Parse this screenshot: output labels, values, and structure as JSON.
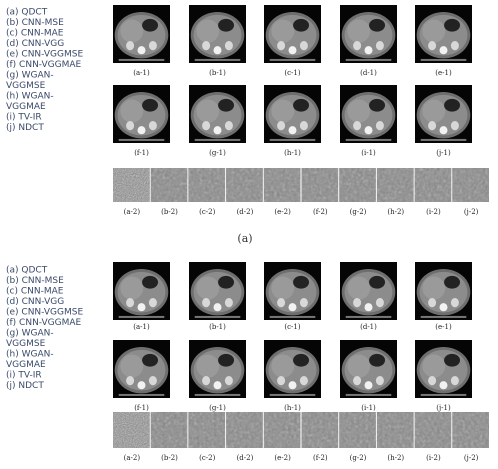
{
  "panels": [
    {
      "legend": [
        "(a) QDCT",
        "(b) CNN-MSE",
        "(c) CNN-MAE",
        "(d) CNN-VGG",
        "(e) CNN-VGGMSE",
        "(f) CNN-VGGMAE",
        "(g) WGAN-",
        "VGGMSE",
        "(h) WGAN-",
        "VGGMAE",
        "(i) TV-IR",
        "(j) NDCT"
      ],
      "image_labels": [
        "(a-1)",
        "(b-1)",
        "(c-1)",
        "(d-1)",
        "(e-1)",
        "(f-1)",
        "(g-1)",
        "(h-1)",
        "(i-1)",
        "(j-1)"
      ],
      "patch_labels": [
        "(a-2)",
        "(b-2)",
        "(c-2)",
        "(d-2)",
        "(e-2)",
        "(f-2)",
        "(g-2)",
        "(h-2)",
        "(i-2)",
        "(j-2)"
      ],
      "caption": "(a)"
    },
    {
      "legend": [
        "(a) QDCT",
        "(b) CNN-MSE",
        "(c) CNN-MAE",
        "(d) CNN-VGG",
        "(e) CNN-VGGMSE",
        "(f) CNN-VGGMAE",
        "(g) WGAN-",
        "VGGMSE",
        "(h) WGAN-",
        "VGGMAE",
        "(i) TV-IR",
        "(j) NDCT"
      ],
      "image_labels": [
        "(a-1)",
        "(b-1)",
        "(c-1)",
        "(d-1)",
        "(e-1)",
        "(f-1)",
        "(g-1)",
        "(h-1)",
        "(i-1)",
        "(j-1)"
      ],
      "patch_labels": [
        "(a-2)",
        "(b-2)",
        "(c-2)",
        "(d-2)",
        "(e-2)",
        "(f-2)",
        "(g-2)",
        "(h-2)",
        "(i-2)",
        "(j-2)"
      ]
    }
  ]
}
